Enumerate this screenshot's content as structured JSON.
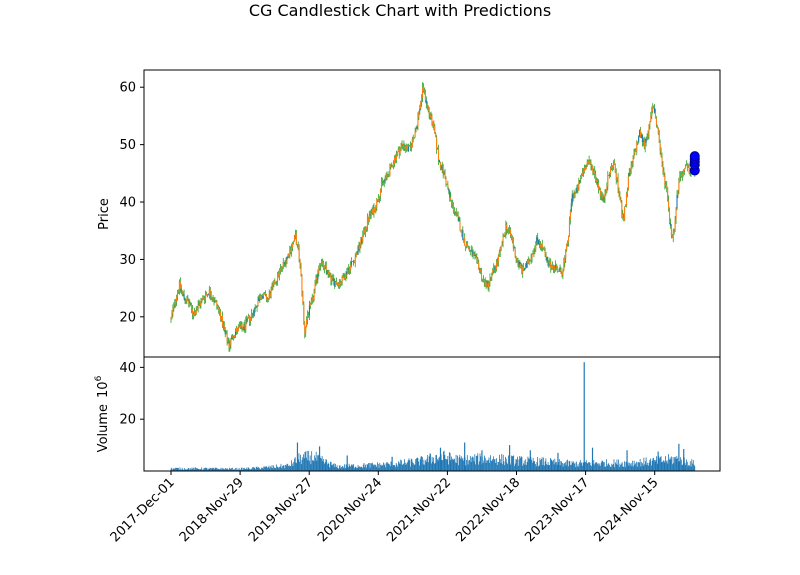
{
  "chart_data": {
    "type": "candlestick",
    "title": "CG Candlestick Chart with Predictions",
    "price_panel": {
      "ylabel": "Price",
      "ylim": [
        13,
        63
      ],
      "yticks": [
        20,
        30,
        40,
        50,
        60
      ]
    },
    "volume_panel": {
      "ylabel": "Volume",
      "ylabel_scale": "10",
      "ylabel_exponent": "6",
      "ylim": [
        0,
        44
      ],
      "yticks": [
        20,
        40
      ]
    },
    "xticks": [
      "2017-Dec-01",
      "2018-Nov-29",
      "2019-Nov-27",
      "2020-Nov-24",
      "2021-Nov-22",
      "2022-Nov-18",
      "2023-Nov-17",
      "2024-Nov-15"
    ],
    "x_range_ticks": [
      -0.35,
      7.6
    ],
    "last_bar_index": 7.58,
    "price_path": [
      [
        0.0,
        19.5
      ],
      [
        0.05,
        22.5
      ],
      [
        0.12,
        25.5
      ],
      [
        0.18,
        23.5
      ],
      [
        0.25,
        22.5
      ],
      [
        0.32,
        20.5
      ],
      [
        0.4,
        22.0
      ],
      [
        0.48,
        23.5
      ],
      [
        0.55,
        24.5
      ],
      [
        0.62,
        23.0
      ],
      [
        0.7,
        21.0
      ],
      [
        0.78,
        17.0
      ],
      [
        0.84,
        15.0
      ],
      [
        0.9,
        17.0
      ],
      [
        0.98,
        18.0
      ],
      [
        1.05,
        18.0
      ],
      [
        1.12,
        19.5
      ],
      [
        1.2,
        21.0
      ],
      [
        1.3,
        24.0
      ],
      [
        1.4,
        23.0
      ],
      [
        1.5,
        26.0
      ],
      [
        1.62,
        29.0
      ],
      [
        1.72,
        31.5
      ],
      [
        1.8,
        34.0
      ],
      [
        1.86,
        30.0
      ],
      [
        1.9,
        24.0
      ],
      [
        1.93,
        17.0
      ],
      [
        1.97,
        20.0
      ],
      [
        2.05,
        23.0
      ],
      [
        2.15,
        29.5
      ],
      [
        2.25,
        28.0
      ],
      [
        2.35,
        26.0
      ],
      [
        2.45,
        26.0
      ],
      [
        2.55,
        28.0
      ],
      [
        2.65,
        30.0
      ],
      [
        2.75,
        33.0
      ],
      [
        2.85,
        37.0
      ],
      [
        2.95,
        39.0
      ],
      [
        3.05,
        43.0
      ],
      [
        3.15,
        45.0
      ],
      [
        3.25,
        48.0
      ],
      [
        3.35,
        50.0
      ],
      [
        3.45,
        49.0
      ],
      [
        3.55,
        53.0
      ],
      [
        3.65,
        60.0
      ],
      [
        3.72,
        56.0
      ],
      [
        3.8,
        53.0
      ],
      [
        3.88,
        47.0
      ],
      [
        3.95,
        45.0
      ],
      [
        4.05,
        40.0
      ],
      [
        4.15,
        37.0
      ],
      [
        4.25,
        33.0
      ],
      [
        4.35,
        31.0
      ],
      [
        4.45,
        29.0
      ],
      [
        4.52,
        26.0
      ],
      [
        4.58,
        25.5
      ],
      [
        4.65,
        27.5
      ],
      [
        4.72,
        29.5
      ],
      [
        4.8,
        33.0
      ],
      [
        4.85,
        36.0
      ],
      [
        4.92,
        34.0
      ],
      [
        5.0,
        30.0
      ],
      [
        5.08,
        28.0
      ],
      [
        5.15,
        29.0
      ],
      [
        5.22,
        31.0
      ],
      [
        5.3,
        33.5
      ],
      [
        5.38,
        32.0
      ],
      [
        5.45,
        29.0
      ],
      [
        5.52,
        29.0
      ],
      [
        5.58,
        28.5
      ],
      [
        5.65,
        27.5
      ],
      [
        5.7,
        30.0
      ],
      [
        5.75,
        34.0
      ],
      [
        5.8,
        41.0
      ],
      [
        5.88,
        42.0
      ],
      [
        5.95,
        45.0
      ],
      [
        6.02,
        47.0
      ],
      [
        6.1,
        46.0
      ],
      [
        6.18,
        43.0
      ],
      [
        6.25,
        40.0
      ],
      [
        6.32,
        44.0
      ],
      [
        6.4,
        47.0
      ],
      [
        6.45,
        44.0
      ],
      [
        6.5,
        40.0
      ],
      [
        6.55,
        37.0
      ],
      [
        6.62,
        44.0
      ],
      [
        6.7,
        48.0
      ],
      [
        6.78,
        52.0
      ],
      [
        6.85,
        50.0
      ],
      [
        6.92,
        53.0
      ],
      [
        6.98,
        57.0
      ],
      [
        7.05,
        52.0
      ],
      [
        7.12,
        45.0
      ],
      [
        7.18,
        42.0
      ],
      [
        7.22,
        36.0
      ],
      [
        7.26,
        33.5
      ],
      [
        7.3,
        38.0
      ],
      [
        7.35,
        44.0
      ],
      [
        7.4,
        45.0
      ],
      [
        7.45,
        46.0
      ],
      [
        7.5,
        45.5
      ],
      [
        7.55,
        45.5
      ]
    ],
    "predictions": [
      {
        "x": 7.58,
        "y": 45.5
      },
      {
        "x": 7.58,
        "y": 46.5
      },
      {
        "x": 7.58,
        "y": 47.0
      },
      {
        "x": 7.58,
        "y": 47.5
      },
      {
        "x": 7.58,
        "y": 48.0
      }
    ],
    "volume_profile": [
      [
        0.0,
        1.0
      ],
      [
        0.5,
        1.0
      ],
      [
        1.0,
        0.9
      ],
      [
        1.3,
        1.3
      ],
      [
        1.7,
        2.2
      ],
      [
        1.85,
        5.0
      ],
      [
        2.05,
        6.0
      ],
      [
        2.2,
        4.0
      ],
      [
        2.4,
        1.8
      ],
      [
        2.8,
        2.3
      ],
      [
        3.2,
        2.8
      ],
      [
        3.6,
        4.0
      ],
      [
        3.9,
        6.0
      ],
      [
        4.2,
        4.5
      ],
      [
        4.6,
        5.2
      ],
      [
        5.0,
        4.3
      ],
      [
        5.4,
        3.8
      ],
      [
        5.8,
        3.0
      ],
      [
        6.2,
        3.3
      ],
      [
        6.6,
        3.3
      ],
      [
        7.0,
        4.0
      ],
      [
        7.3,
        5.0
      ],
      [
        7.58,
        3.0
      ]
    ],
    "volume_spikes": [
      {
        "x": 1.83,
        "v": 11.0
      },
      {
        "x": 2.15,
        "v": 9.5
      },
      {
        "x": 2.55,
        "v": 6.0
      },
      {
        "x": 3.2,
        "v": 5.5
      },
      {
        "x": 3.9,
        "v": 9.0
      },
      {
        "x": 4.25,
        "v": 11.0
      },
      {
        "x": 4.5,
        "v": 8.0
      },
      {
        "x": 4.9,
        "v": 10.0
      },
      {
        "x": 5.2,
        "v": 8.0
      },
      {
        "x": 5.6,
        "v": 7.0
      },
      {
        "x": 5.98,
        "v": 42.0
      },
      {
        "x": 6.1,
        "v": 9.0
      },
      {
        "x": 6.6,
        "v": 8.0
      },
      {
        "x": 7.05,
        "v": 7.5
      },
      {
        "x": 7.35,
        "v": 10.5
      },
      {
        "x": 7.42,
        "v": 8.5
      }
    ],
    "colors": {
      "wick": "#2ca02c",
      "candle": "#ff7f0e",
      "candle_alt": "#1f77b4",
      "volume": "#1f77b4",
      "prediction_fill": "#0000ff",
      "prediction_edge": "#00008b"
    }
  }
}
